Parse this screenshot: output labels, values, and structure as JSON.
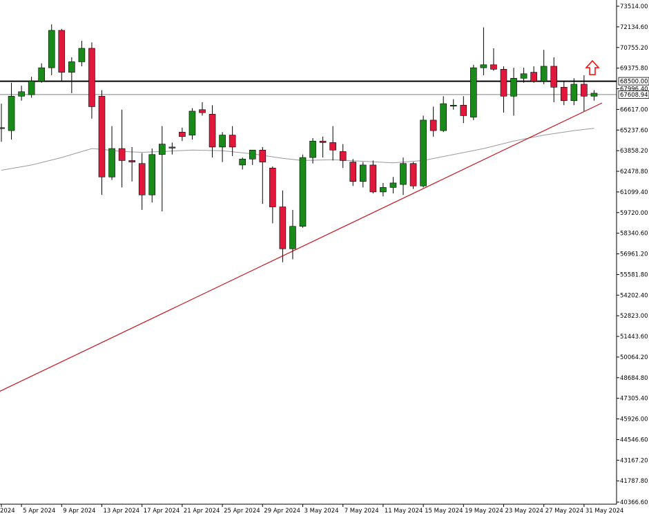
{
  "chart_data": {
    "type": "candlestick",
    "title": "",
    "xlabel": "",
    "ylabel": "",
    "ylim": [
      40366.6,
      74135.0
    ],
    "y_ticks": [
      73514.0,
      72134.6,
      70755.2,
      69375.8,
      67996.4,
      66617.0,
      65237.6,
      63858.2,
      62478.8,
      61099.4,
      59720.0,
      58340.6,
      56961.2,
      55581.8,
      54202.4,
      52823.0,
      51443.6,
      50064.2,
      48684.8,
      47305.4,
      45926.0,
      44546.6,
      43167.2,
      41787.8,
      40366.6
    ],
    "y_tick_labels": [
      "73514.00",
      "72134.60",
      "70755.20",
      "69375.80",
      "67996.40",
      "66617.00",
      "65237.60",
      "63858.20",
      "62478.80",
      "61099.40",
      "59720.00",
      "58340.60",
      "56961.20",
      "55581.80",
      "54202.40",
      "52823.00",
      "51443.60",
      "50064.20",
      "48684.80",
      "47305.40",
      "45926.00",
      "44546.60",
      "43167.20",
      "41787.80",
      "40366.60"
    ],
    "x_tick_labels": [
      {
        "label": "2024",
        "index": 0
      },
      {
        "label": "5 Apr 2024",
        "index": 2
      },
      {
        "label": "9 Apr 2024",
        "index": 6
      },
      {
        "label": "13 Apr 2024",
        "index": 10
      },
      {
        "label": "17 Apr 2024",
        "index": 14
      },
      {
        "label": "21 Apr 2024",
        "index": 18
      },
      {
        "label": "25 Apr 2024",
        "index": 22
      },
      {
        "label": "29 Apr 2024",
        "index": 26
      },
      {
        "label": "3 May 2024",
        "index": 30
      },
      {
        "label": "7 May 2024",
        "index": 34
      },
      {
        "label": "11 May 2024",
        "index": 38
      },
      {
        "label": "15 May 2024",
        "index": 42
      },
      {
        "label": "19 May 2024",
        "index": 46
      },
      {
        "label": "23 May 2024",
        "index": 50
      },
      {
        "label": "27 May 2024",
        "index": 54
      },
      {
        "label": "31 May 2024",
        "index": 58
      }
    ],
    "candles": [
      {
        "o": 65400,
        "h": 67000,
        "l": 64450,
        "c": 65400
      },
      {
        "o": 65200,
        "h": 68400,
        "l": 64600,
        "c": 67500
      },
      {
        "o": 67500,
        "h": 68200,
        "l": 67200,
        "c": 67800
      },
      {
        "o": 67600,
        "h": 68800,
        "l": 67400,
        "c": 68500
      },
      {
        "o": 68500,
        "h": 69700,
        "l": 68400,
        "c": 69400
      },
      {
        "o": 69400,
        "h": 72300,
        "l": 68900,
        "c": 71900
      },
      {
        "o": 71900,
        "h": 72000,
        "l": 68500,
        "c": 69100
      },
      {
        "o": 69100,
        "h": 70100,
        "l": 67700,
        "c": 69800
      },
      {
        "o": 69800,
        "h": 71200,
        "l": 69500,
        "c": 70700
      },
      {
        "o": 70700,
        "h": 71100,
        "l": 66000,
        "c": 66800
      },
      {
        "o": 67500,
        "h": 67900,
        "l": 60900,
        "c": 62100
      },
      {
        "o": 62100,
        "h": 65500,
        "l": 61900,
        "c": 64000
      },
      {
        "o": 64000,
        "h": 66600,
        "l": 61400,
        "c": 63200
      },
      {
        "o": 63200,
        "h": 64100,
        "l": 61800,
        "c": 63100
      },
      {
        "o": 63000,
        "h": 63700,
        "l": 59900,
        "c": 60900
      },
      {
        "o": 60900,
        "h": 64000,
        "l": 60400,
        "c": 63600
      },
      {
        "o": 63600,
        "h": 65500,
        "l": 59800,
        "c": 64300
      },
      {
        "o": 64100,
        "h": 64400,
        "l": 63600,
        "c": 64100
      },
      {
        "o": 65100,
        "h": 65400,
        "l": 64500,
        "c": 64800
      },
      {
        "o": 64900,
        "h": 66700,
        "l": 64600,
        "c": 66500
      },
      {
        "o": 66600,
        "h": 67100,
        "l": 66200,
        "c": 66400
      },
      {
        "o": 66300,
        "h": 66900,
        "l": 63400,
        "c": 64100
      },
      {
        "o": 64100,
        "h": 65100,
        "l": 63100,
        "c": 64900
      },
      {
        "o": 64900,
        "h": 65500,
        "l": 63500,
        "c": 64100
      },
      {
        "o": 62900,
        "h": 63400,
        "l": 62600,
        "c": 63300
      },
      {
        "o": 63300,
        "h": 63700,
        "l": 62900,
        "c": 63900
      },
      {
        "o": 63900,
        "h": 64100,
        "l": 60300,
        "c": 63100
      },
      {
        "o": 62700,
        "h": 62800,
        "l": 59000,
        "c": 60100
      },
      {
        "o": 60100,
        "h": 61200,
        "l": 56400,
        "c": 57300
      },
      {
        "o": 57300,
        "h": 59900,
        "l": 56600,
        "c": 58800
      },
      {
        "o": 58800,
        "h": 63600,
        "l": 58700,
        "c": 63400
      },
      {
        "o": 63400,
        "h": 64700,
        "l": 63000,
        "c": 64500
      },
      {
        "o": 64500,
        "h": 64800,
        "l": 63400,
        "c": 64400
      },
      {
        "o": 64400,
        "h": 65500,
        "l": 63200,
        "c": 63900
      },
      {
        "o": 63800,
        "h": 64300,
        "l": 62700,
        "c": 63200
      },
      {
        "o": 63100,
        "h": 63300,
        "l": 61500,
        "c": 61800
      },
      {
        "o": 61800,
        "h": 63100,
        "l": 61400,
        "c": 62900
      },
      {
        "o": 62900,
        "h": 63200,
        "l": 61000,
        "c": 61100
      },
      {
        "o": 61100,
        "h": 61700,
        "l": 60800,
        "c": 61400
      },
      {
        "o": 61400,
        "h": 62100,
        "l": 61000,
        "c": 61700
      },
      {
        "o": 61600,
        "h": 63400,
        "l": 60900,
        "c": 63000
      },
      {
        "o": 63000,
        "h": 63100,
        "l": 61300,
        "c": 61500
      },
      {
        "o": 61500,
        "h": 66200,
        "l": 61400,
        "c": 65900
      },
      {
        "o": 65900,
        "h": 66800,
        "l": 64800,
        "c": 65200
      },
      {
        "o": 65200,
        "h": 67500,
        "l": 65100,
        "c": 67000
      },
      {
        "o": 66900,
        "h": 67300,
        "l": 66600,
        "c": 66900
      },
      {
        "o": 66900,
        "h": 67500,
        "l": 65700,
        "c": 66200
      },
      {
        "o": 66100,
        "h": 69600,
        "l": 65900,
        "c": 69400
      },
      {
        "o": 69400,
        "h": 72100,
        "l": 68900,
        "c": 69600
      },
      {
        "o": 69600,
        "h": 70700,
        "l": 69200,
        "c": 69300
      },
      {
        "o": 69300,
        "h": 69500,
        "l": 66400,
        "c": 67500
      },
      {
        "o": 67500,
        "h": 69400,
        "l": 66200,
        "c": 68700
      },
      {
        "o": 68700,
        "h": 69400,
        "l": 68400,
        "c": 69000
      },
      {
        "o": 69100,
        "h": 69500,
        "l": 68400,
        "c": 68500
      },
      {
        "o": 68500,
        "h": 70600,
        "l": 68300,
        "c": 69500
      },
      {
        "o": 69500,
        "h": 70100,
        "l": 67100,
        "c": 68100
      },
      {
        "o": 68100,
        "h": 68500,
        "l": 66900,
        "c": 67200
      },
      {
        "o": 67200,
        "h": 68700,
        "l": 66900,
        "c": 68300
      },
      {
        "o": 68300,
        "h": 68900,
        "l": 66500,
        "c": 67500
      },
      {
        "o": 67500,
        "h": 67900,
        "l": 67200,
        "c": 67700
      }
    ],
    "moving_average": [
      {
        "i": 0,
        "v": 62550
      },
      {
        "i": 3,
        "v": 62900
      },
      {
        "i": 6,
        "v": 63400
      },
      {
        "i": 8,
        "v": 63800
      },
      {
        "i": 9,
        "v": 64000
      },
      {
        "i": 10,
        "v": 63950
      },
      {
        "i": 12,
        "v": 63800
      },
      {
        "i": 14,
        "v": 63750
      },
      {
        "i": 16,
        "v": 63800
      },
      {
        "i": 19,
        "v": 63900
      },
      {
        "i": 22,
        "v": 63850
      },
      {
        "i": 25,
        "v": 63650
      },
      {
        "i": 28,
        "v": 63350
      },
      {
        "i": 30,
        "v": 63200
      },
      {
        "i": 33,
        "v": 63250
      },
      {
        "i": 36,
        "v": 63150
      },
      {
        "i": 39,
        "v": 63050
      },
      {
        "i": 42,
        "v": 63200
      },
      {
        "i": 45,
        "v": 63600
      },
      {
        "i": 48,
        "v": 64000
      },
      {
        "i": 51,
        "v": 64500
      },
      {
        "i": 54,
        "v": 64900
      },
      {
        "i": 57,
        "v": 65200
      },
      {
        "i": 59,
        "v": 65350
      }
    ],
    "horizontal_levels": [
      {
        "value": 68500.0,
        "label": "68500.00",
        "color": "#000000"
      },
      {
        "value": 67608.94,
        "label": "67608.94",
        "color": "#808080"
      }
    ],
    "trendline": {
      "from": {
        "i": -1,
        "v": 47500
      },
      "to": {
        "i": 59.8,
        "v": 67050
      },
      "color": "#c8151e"
    },
    "arrow": {
      "direction": "up",
      "color": "#ff0000"
    },
    "colors": {
      "up": "#1a8a1a",
      "down": "#e0193c",
      "ma": "#9a9a9a",
      "axis": "#000000"
    }
  }
}
